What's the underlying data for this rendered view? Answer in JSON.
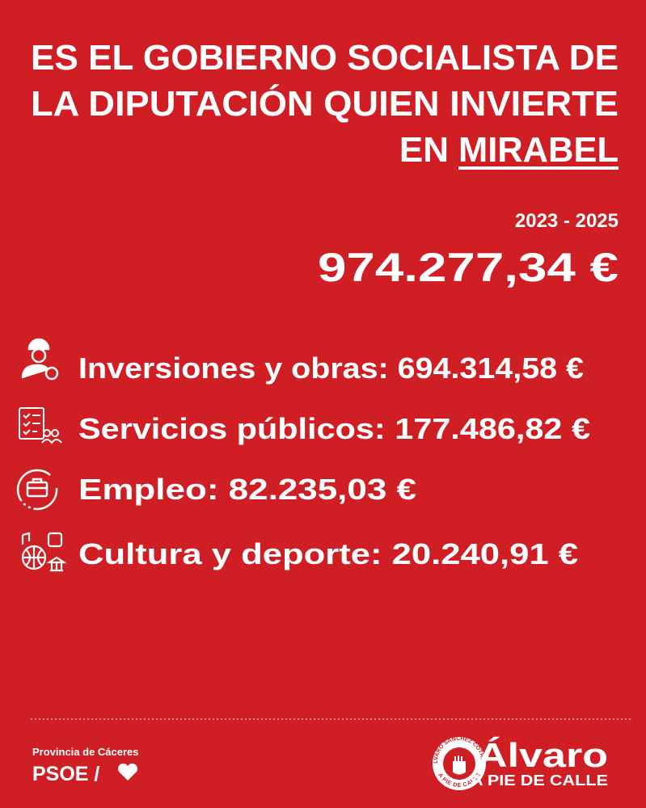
{
  "header": {
    "title_lines": [
      "ES EL GOBIERNO SOCIALISTA DE",
      "LA DIPUTACIÓN QUIEN INVIERTE"
    ],
    "title_prefix": "EN",
    "title_highlight": "MIRABEL"
  },
  "summary": {
    "period": "2023 - 2025",
    "total": "974.277,34 €"
  },
  "items": [
    {
      "text": "Inversiones y obras: 694.314,58 €"
    },
    {
      "text": "Servicios públicos: 177.486,82 €"
    },
    {
      "text": "Empleo: 82.235,03 €"
    },
    {
      "text": "Cultura y deporte: 20.240,91 €"
    }
  ],
  "footer": {
    "region": "Provincia de Cáceres",
    "party": "PSOE /",
    "brand_name": "Álvaro",
    "brand_tagline": "A PIE DE CALLE",
    "seal_top": "ÁLVARO SÁNCHEZ COTRINA",
    "seal_bottom": "A PIE DE CALLE"
  }
}
